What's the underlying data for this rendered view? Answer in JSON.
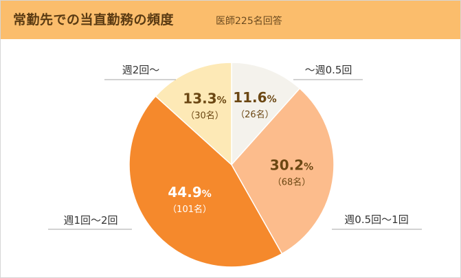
{
  "header": {
    "title": "常勤先での当直勤務の頻度",
    "subtitle": "医師225名回答"
  },
  "colors": {
    "header_bg": "#fbbd6c",
    "leader_line": "#a6a6a6",
    "value_text_dark": "#6b4713",
    "count_text_dark": "#6b4a1f",
    "value_text_light": "#ffffff"
  },
  "chart_data": {
    "type": "pie",
    "title": "常勤先での当直勤務の頻度",
    "subtitle": "医師225名回答",
    "slices": [
      {
        "label": "〜週0.5回",
        "value": 11.6,
        "value_label": "11.6",
        "count_label": "（26名）",
        "color": "#f4f2ec",
        "text_color": "#6b4713"
      },
      {
        "label": "週0.5回〜1回",
        "value": 30.2,
        "value_label": "30.2",
        "count_label": "（68名）",
        "color": "#fcbc8c",
        "text_color": "#6b4713"
      },
      {
        "label": "週1回〜2回",
        "value": 44.9,
        "value_label": "44.9",
        "count_label": "（101名）",
        "color": "#f5892c",
        "text_color": "#ffffff"
      },
      {
        "label": "週2回〜",
        "value": 13.3,
        "value_label": "13.3",
        "count_label": "（30名）",
        "color": "#fde9b6",
        "text_color": "#6b4713"
      }
    ],
    "unit": "%"
  }
}
